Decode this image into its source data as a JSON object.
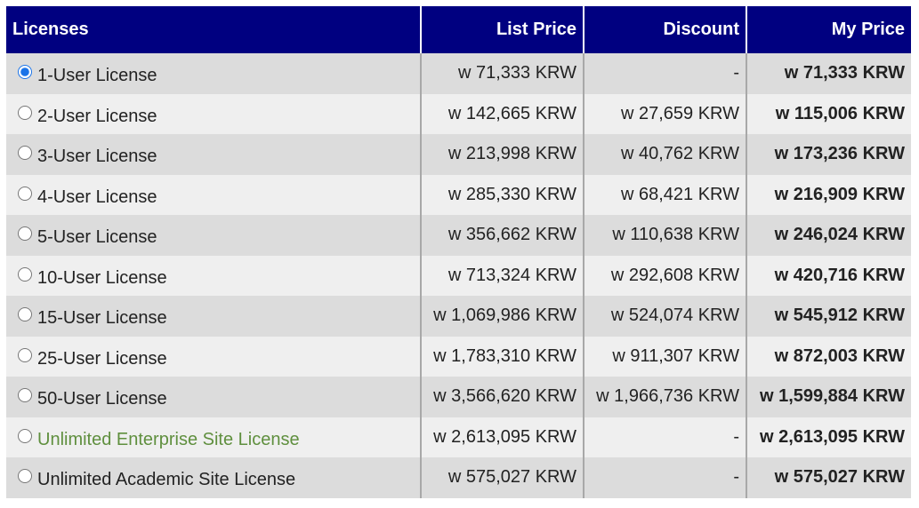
{
  "table": {
    "headers": {
      "licenses": "Licenses",
      "list_price": "List Price",
      "discount": "Discount",
      "my_price": "My Price"
    },
    "rows": [
      {
        "label": "1-User License",
        "list_price": "w 71,333 KRW",
        "discount": "-",
        "my_price": "w 71,333 KRW",
        "selected": true
      },
      {
        "label": "2-User License",
        "list_price": "w 142,665 KRW",
        "discount": "w 27,659 KRW",
        "my_price": "w 115,006 KRW",
        "selected": false
      },
      {
        "label": "3-User License",
        "list_price": "w 213,998 KRW",
        "discount": "w 40,762 KRW",
        "my_price": "w 173,236 KRW",
        "selected": false
      },
      {
        "label": "4-User License",
        "list_price": "w 285,330 KRW",
        "discount": "w 68,421 KRW",
        "my_price": "w 216,909 KRW",
        "selected": false
      },
      {
        "label": "5-User License",
        "list_price": "w 356,662 KRW",
        "discount": "w 110,638 KRW",
        "my_price": "w 246,024 KRW",
        "selected": false
      },
      {
        "label": "10-User License",
        "list_price": "w 713,324 KRW",
        "discount": "w 292,608 KRW",
        "my_price": "w 420,716 KRW",
        "selected": false
      },
      {
        "label": "15-User License",
        "list_price": "w 1,069,986 KRW",
        "discount": "w 524,074 KRW",
        "my_price": "w 545,912 KRW",
        "selected": false
      },
      {
        "label": "25-User License",
        "list_price": "w 1,783,310 KRW",
        "discount": "w 911,307 KRW",
        "my_price": "w 872,003 KRW",
        "selected": false
      },
      {
        "label": "50-User License",
        "list_price": "w 3,566,620 KRW",
        "discount": "w 1,966,736 KRW",
        "my_price": "w 1,599,884 KRW",
        "selected": false
      },
      {
        "label": "Unlimited Enterprise Site License",
        "list_price": "w 2,613,095 KRW",
        "discount": "-",
        "my_price": "w 2,613,095 KRW",
        "selected": false
      },
      {
        "label": "Unlimited Academic Site License",
        "list_price": "w 575,027 KRW",
        "discount": "-",
        "my_price": "w 575,027 KRW",
        "selected": false
      }
    ]
  },
  "colors": {
    "header_bg": "#000080",
    "header_text": "#ffffff",
    "row_odd": "#dcdcdc",
    "row_even": "#efefef",
    "enterprise_label": "#5f8f3e"
  }
}
